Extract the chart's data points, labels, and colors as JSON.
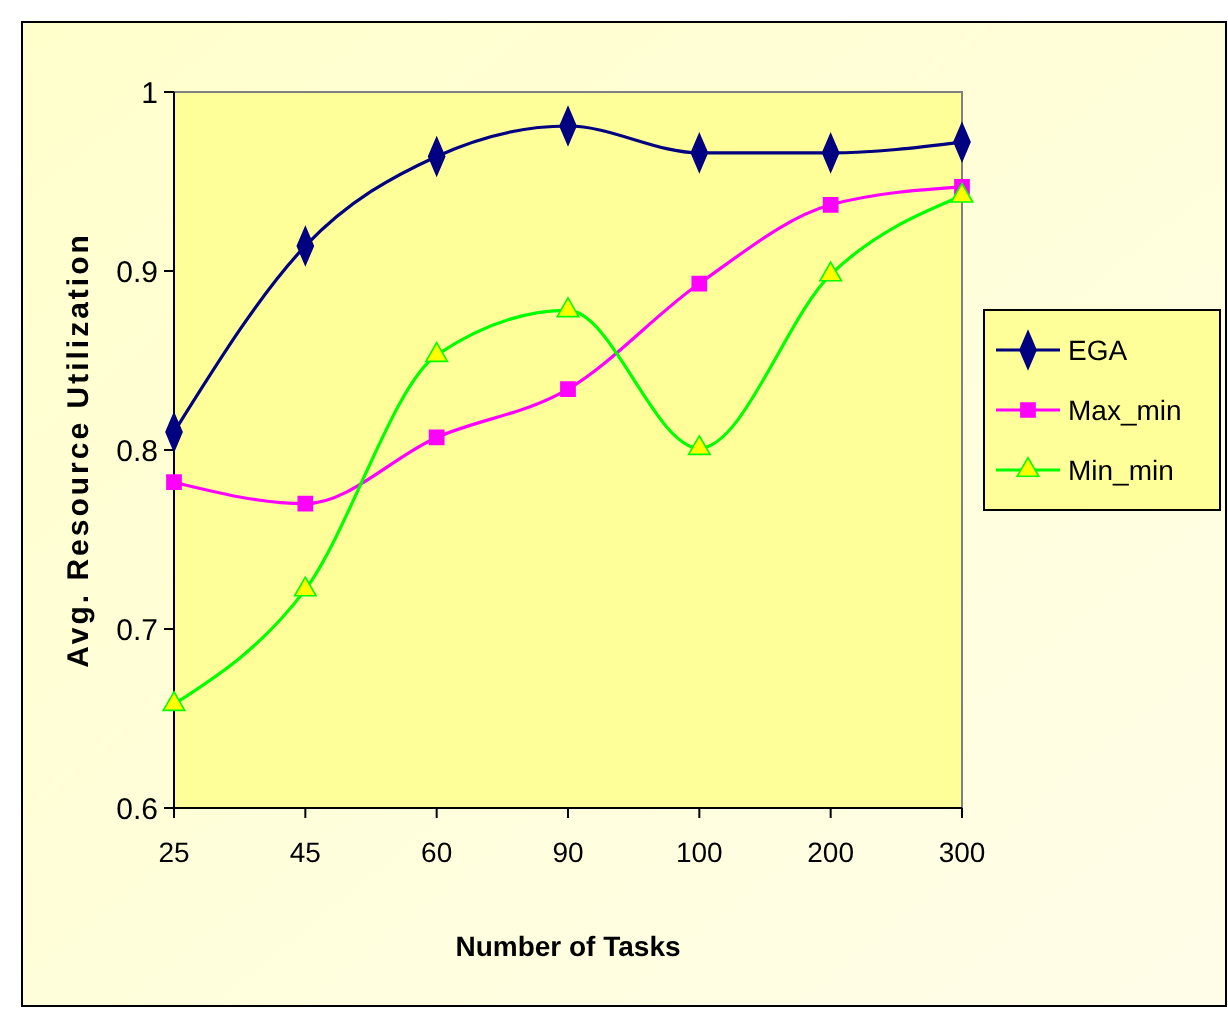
{
  "chart_data": {
    "type": "line",
    "xlabel": "Number of Tasks",
    "ylabel": "Avg. Resource Utilization",
    "categories": [
      "25",
      "45",
      "60",
      "90",
      "100",
      "200",
      "300"
    ],
    "ylim": [
      0.6,
      1
    ],
    "yticks": [
      0.6,
      0.7,
      0.8,
      0.9,
      1
    ],
    "grid": false,
    "legend": "right",
    "line_style": "solid",
    "series": [
      {
        "name": "EGA",
        "color": "#000080",
        "marker": "diamond",
        "values": [
          0.81,
          0.914,
          0.964,
          0.981,
          0.966,
          0.966,
          0.972
        ]
      },
      {
        "name": "Max_min",
        "color": "#ff00ff",
        "marker": "square",
        "values": [
          0.782,
          0.77,
          0.807,
          0.834,
          0.893,
          0.937,
          0.947
        ]
      },
      {
        "name": "Min_min",
        "color": "#00ff00",
        "colors": [
          "#ffff00",
          "#ffff00",
          "#ffff00",
          "#ffff00",
          "#ffff00",
          "#ffff00",
          "#ffff00"
        ],
        "marker": "triangle",
        "values": [
          0.658,
          0.722,
          0.853,
          0.878,
          0.801,
          0.898,
          0.942
        ]
      }
    ]
  }
}
